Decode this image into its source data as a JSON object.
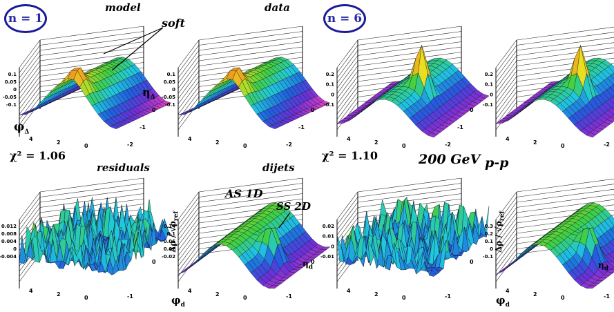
{
  "labels": {
    "n1": "n = 1",
    "n6": "n = 6",
    "model": "model",
    "data": "data",
    "soft": "soft",
    "chi1": "χ² = 1.06",
    "chi2": "χ² = 1.10",
    "residuals": "residuals",
    "dijets": "dijets",
    "energy": "200 GeV",
    "system": "p-p",
    "as1d": "AS 1D",
    "ss2d": "SS 2D"
  },
  "axes": {
    "phi_delta": "φ",
    "phi_sub": "Δ",
    "eta_delta": "η",
    "eta_sub": "Δ",
    "phi_d": "φ",
    "phi_d_sub": "d",
    "eta_d": "η",
    "eta_d_sub": "d",
    "rho_label": "Δρ / √ρ",
    "rho_sub": "ref",
    "phi_ticks": [
      "4",
      "2",
      "0"
    ],
    "eta_ticks": [
      "0",
      "-1",
      "-2"
    ],
    "eta_ticks_short": [
      "0",
      "-1"
    ]
  },
  "panels": [
    {
      "id": "model-n1",
      "shape": "soft",
      "z_ticks": [
        "0.1",
        "0.05",
        "0",
        "-0.05",
        "-0.1"
      ]
    },
    {
      "id": "data-n1",
      "shape": "soft",
      "z_ticks": [
        "0.1",
        "0.05",
        "0",
        "-0.05",
        "-0.1"
      ]
    },
    {
      "id": "model-n6",
      "shape": "peak",
      "z_ticks": [
        "0.2",
        "0.1",
        "0",
        "-0.1"
      ]
    },
    {
      "id": "data-n6",
      "shape": "peak",
      "z_ticks": [
        "0.2",
        "0.1",
        "0",
        "-0.1"
      ]
    },
    {
      "id": "residuals-n1",
      "shape": "noise",
      "z_ticks": [
        "0.012",
        "0.008",
        "0.004",
        "0",
        "-0.004"
      ]
    },
    {
      "id": "dijets-n1",
      "shape": "dijet",
      "z_ticks": [
        "0.14",
        "0.1",
        "0.06",
        "0.02",
        "-0.02"
      ]
    },
    {
      "id": "residuals-n6",
      "shape": "noise",
      "z_ticks": [
        "0.02",
        "0.01",
        "0",
        "-0.01"
      ]
    },
    {
      "id": "dijets-n6",
      "shape": "dijet",
      "z_ticks": [
        "0.3",
        "0.2",
        "0.1",
        "0",
        "-0.1"
      ]
    }
  ],
  "colors": {
    "magenta": "#e040c8",
    "violet": "#6a30d8",
    "blue": "#2060e0",
    "cyan": "#20c8e0",
    "green": "#40d040",
    "yellow": "#e8e020",
    "orange": "#f0a020",
    "circle": "#1a1a9a"
  }
}
